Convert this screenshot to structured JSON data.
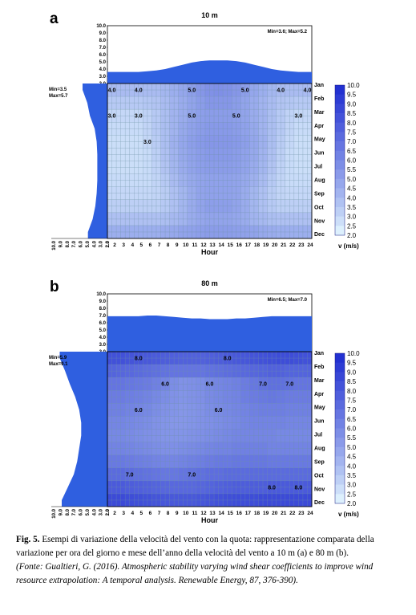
{
  "caption": {
    "label": "Fig. 5.",
    "text": "Esempi di variazione della velocità del vento con la quota: rappresentazione comparata della variazione per ora del giorno e mese dell’anno della velocità del vento a 10 m (a) e 80 m (b).",
    "source": "(Fonte: Gualtieri, G. (2016). Atmospheric stability varying wind shear coefficients to improve wind resource extrapolation: A temporal analysis. Renewable Energy, 87, 376-390)."
  },
  "chart_data": [
    {
      "type": "heatmap",
      "panel": "a",
      "title": "10 m",
      "xlabel": "Hour",
      "x": [
        2,
        3,
        4,
        5,
        6,
        7,
        8,
        9,
        10,
        11,
        12,
        13,
        14,
        15,
        16,
        17,
        18,
        19,
        20,
        21,
        22,
        23,
        24
      ],
      "x_tick_labels": [
        "2.0",
        "2",
        "3",
        "4",
        "5",
        "6",
        "7",
        "8",
        "9",
        "10",
        "11",
        "12",
        "13",
        "14",
        "15",
        "16",
        "17",
        "18",
        "19",
        "20",
        "21",
        "22",
        "23",
        "24"
      ],
      "y_months": [
        "Jan",
        "Feb",
        "Mar",
        "Apr",
        "May",
        "Jun",
        "Jul",
        "Aug",
        "Sep",
        "Oct",
        "Nov",
        "Dec"
      ],
      "top_profile_ticks": [
        "10.0",
        "9.0",
        "8.0",
        "7.0",
        "6.0",
        "5.0",
        "4.0",
        "3.0",
        "2.0"
      ],
      "left_profile_ticks": [
        "10.0",
        "9.0",
        "8.0",
        "7.0",
        "6.0",
        "5.0",
        "4.0",
        "3.0",
        "2.0"
      ],
      "top_stats": "Min=3.6; Max=5.2",
      "left_stats": [
        "Min=3.5",
        "Max=5.7"
      ],
      "contour_labels": [
        "3.0",
        "4.0",
        "5.0"
      ],
      "hourly_profile": [
        3.6,
        3.6,
        3.6,
        3.6,
        3.7,
        3.8,
        4.0,
        4.3,
        4.6,
        4.9,
        5.1,
        5.2,
        5.2,
        5.2,
        5.1,
        4.9,
        4.6,
        4.3,
        4.0,
        3.8,
        3.7,
        3.6,
        3.6
      ],
      "monthly_profile": [
        5.7,
        5.0,
        4.6,
        3.9,
        3.6,
        3.5,
        3.5,
        3.5,
        3.6,
        3.8,
        4.2,
        4.9
      ],
      "values": [
        [
          4.0,
          4.0,
          4.0,
          4.0,
          4.0,
          4.0,
          4.2,
          4.5,
          4.8,
          5.1,
          5.4,
          5.6,
          5.7,
          5.6,
          5.4,
          5.1,
          4.8,
          4.5,
          4.2,
          4.0,
          4.0,
          4.0,
          4.0
        ],
        [
          3.5,
          3.5,
          3.5,
          3.5,
          3.6,
          3.7,
          4.0,
          4.3,
          4.6,
          4.9,
          5.2,
          5.4,
          5.4,
          5.4,
          5.2,
          4.9,
          4.6,
          4.3,
          4.0,
          3.7,
          3.6,
          3.5,
          3.5
        ],
        [
          3.0,
          3.0,
          3.0,
          3.0,
          3.2,
          3.5,
          3.9,
          4.3,
          4.6,
          4.9,
          5.1,
          5.2,
          5.2,
          5.2,
          5.1,
          4.9,
          4.6,
          4.3,
          3.9,
          3.5,
          3.2,
          3.0,
          3.0
        ],
        [
          2.9,
          2.9,
          2.9,
          2.9,
          3.1,
          3.5,
          3.9,
          4.3,
          4.7,
          5.0,
          5.2,
          5.3,
          5.3,
          5.3,
          5.2,
          5.0,
          4.7,
          4.3,
          3.9,
          3.5,
          3.1,
          2.9,
          2.9
        ],
        [
          2.8,
          2.8,
          2.8,
          2.8,
          3.0,
          3.4,
          3.9,
          4.4,
          4.8,
          5.1,
          5.3,
          5.4,
          5.4,
          5.4,
          5.3,
          5.1,
          4.8,
          4.4,
          3.9,
          3.4,
          3.0,
          2.8,
          2.8
        ],
        [
          2.8,
          2.8,
          2.8,
          2.8,
          2.9,
          3.3,
          3.8,
          4.3,
          4.7,
          5.0,
          5.2,
          5.3,
          5.3,
          5.3,
          5.2,
          5.0,
          4.7,
          4.3,
          3.8,
          3.3,
          2.9,
          2.8,
          2.8
        ],
        [
          2.8,
          2.8,
          2.8,
          2.8,
          2.9,
          3.2,
          3.7,
          4.2,
          4.6,
          4.9,
          5.1,
          5.2,
          5.2,
          5.2,
          5.1,
          4.9,
          4.6,
          4.2,
          3.7,
          3.2,
          2.9,
          2.8,
          2.8
        ],
        [
          2.9,
          2.9,
          2.9,
          2.9,
          2.9,
          3.1,
          3.5,
          4.0,
          4.4,
          4.7,
          4.9,
          5.0,
          5.0,
          5.0,
          4.9,
          4.7,
          4.4,
          4.0,
          3.5,
          3.1,
          2.9,
          2.9,
          2.9
        ],
        [
          3.0,
          3.0,
          3.0,
          3.0,
          3.0,
          3.1,
          3.4,
          3.8,
          4.2,
          4.6,
          4.9,
          5.0,
          5.0,
          5.0,
          4.9,
          4.6,
          4.2,
          3.8,
          3.4,
          3.1,
          3.0,
          3.0,
          3.0
        ],
        [
          3.3,
          3.3,
          3.3,
          3.3,
          3.3,
          3.3,
          3.5,
          3.8,
          4.2,
          4.6,
          4.9,
          5.1,
          5.1,
          5.1,
          4.9,
          4.6,
          4.2,
          3.8,
          3.5,
          3.3,
          3.3,
          3.3,
          3.3
        ],
        [
          3.8,
          3.8,
          3.8,
          3.8,
          3.8,
          3.8,
          3.9,
          4.1,
          4.3,
          4.6,
          4.8,
          4.9,
          4.9,
          4.9,
          4.8,
          4.6,
          4.3,
          4.1,
          3.9,
          3.8,
          3.8,
          3.8,
          3.8
        ],
        [
          4.5,
          4.5,
          4.5,
          4.5,
          4.5,
          4.5,
          4.6,
          4.7,
          4.9,
          5.0,
          5.1,
          5.2,
          5.2,
          5.2,
          5.1,
          5.0,
          4.9,
          4.7,
          4.6,
          4.5,
          4.5,
          4.5,
          4.5
        ]
      ],
      "colorbar": {
        "label": "v (m/s)",
        "ticks": [
          "10.0",
          "9.5",
          "9.0",
          "8.5",
          "8.0",
          "7.5",
          "7.0",
          "6.5",
          "6.0",
          "5.5",
          "5.0",
          "4.5",
          "4.0",
          "3.5",
          "3.0",
          "2.5",
          "2.0"
        ],
        "range": [
          2.0,
          10.0
        ]
      }
    },
    {
      "type": "heatmap",
      "panel": "b",
      "title": "80 m",
      "xlabel": "Hour",
      "x": [
        2,
        3,
        4,
        5,
        6,
        7,
        8,
        9,
        10,
        11,
        12,
        13,
        14,
        15,
        16,
        17,
        18,
        19,
        20,
        21,
        22,
        23,
        24
      ],
      "x_tick_labels": [
        "2.0",
        "2",
        "3",
        "4",
        "5",
        "6",
        "7",
        "8",
        "9",
        "10",
        "11",
        "12",
        "13",
        "14",
        "15",
        "16",
        "17",
        "18",
        "19",
        "20",
        "21",
        "22",
        "23",
        "24"
      ],
      "y_months": [
        "Jan",
        "Feb",
        "Mar",
        "Apr",
        "May",
        "Jun",
        "Jul",
        "Aug",
        "Sep",
        "Oct",
        "Nov",
        "Dec"
      ],
      "top_profile_ticks": [
        "10.0",
        "9.0",
        "8.0",
        "7.0",
        "6.0",
        "5.0",
        "4.0",
        "3.0",
        "2.0"
      ],
      "left_profile_ticks": [
        "10.0",
        "9.0",
        "8.0",
        "7.0",
        "6.0",
        "5.0",
        "4.0",
        "3.0",
        "2.0"
      ],
      "top_stats": "Min=6.5; Max=7.0",
      "left_stats": [
        "Min=5.9",
        "Max=9.1"
      ],
      "contour_labels": [
        "6.0",
        "7.0",
        "8.0"
      ],
      "hourly_profile": [
        6.9,
        6.9,
        6.9,
        6.9,
        7.0,
        7.0,
        6.9,
        6.8,
        6.7,
        6.6,
        6.6,
        6.5,
        6.5,
        6.5,
        6.6,
        6.6,
        6.7,
        6.8,
        6.9,
        6.9,
        6.9,
        6.9,
        6.9
      ],
      "monthly_profile": [
        9.1,
        8.3,
        7.6,
        6.8,
        6.2,
        5.9,
        5.9,
        6.2,
        6.5,
        7.0,
        7.9,
        8.8
      ],
      "values": [
        [
          8.3,
          8.3,
          8.2,
          8.1,
          8.0,
          7.9,
          7.8,
          7.7,
          7.6,
          7.6,
          7.6,
          7.7,
          7.8,
          7.9,
          8.0,
          8.1,
          8.2,
          8.3,
          8.4,
          8.5,
          8.5,
          8.4,
          8.3
        ],
        [
          7.5,
          7.4,
          7.3,
          7.2,
          7.1,
          7.0,
          6.9,
          6.8,
          6.8,
          6.8,
          6.8,
          6.9,
          7.0,
          7.1,
          7.2,
          7.3,
          7.4,
          7.5,
          7.6,
          7.6,
          7.5,
          7.5,
          7.5
        ],
        [
          6.8,
          6.8,
          6.7,
          6.6,
          6.5,
          6.3,
          6.1,
          5.8,
          5.6,
          5.7,
          5.8,
          6.0,
          6.1,
          6.2,
          6.3,
          6.5,
          6.7,
          6.9,
          7.0,
          7.0,
          6.9,
          6.8,
          6.8
        ],
        [
          6.5,
          6.5,
          6.4,
          6.3,
          6.2,
          6.0,
          5.8,
          5.6,
          5.5,
          5.6,
          5.7,
          5.9,
          6.0,
          6.1,
          6.2,
          6.4,
          6.5,
          6.6,
          6.7,
          6.6,
          6.5,
          6.5,
          6.5
        ],
        [
          6.3,
          6.3,
          6.2,
          6.1,
          6.0,
          5.8,
          5.6,
          5.5,
          5.4,
          5.5,
          5.6,
          5.8,
          5.9,
          6.0,
          6.1,
          6.2,
          6.3,
          6.4,
          6.4,
          6.4,
          6.3,
          6.3,
          6.3
        ],
        [
          6.1,
          6.1,
          6.0,
          5.9,
          5.8,
          5.6,
          5.5,
          5.4,
          5.4,
          5.5,
          5.6,
          5.7,
          5.8,
          5.9,
          6.0,
          6.1,
          6.2,
          6.2,
          6.2,
          6.2,
          6.1,
          6.1,
          6.1
        ],
        [
          6.0,
          6.0,
          5.9,
          5.8,
          5.7,
          5.6,
          5.5,
          5.5,
          5.5,
          5.6,
          5.7,
          5.8,
          5.9,
          6.0,
          6.1,
          6.1,
          6.1,
          6.1,
          6.1,
          6.0,
          6.0,
          6.0,
          6.0
        ],
        [
          6.2,
          6.2,
          6.1,
          6.0,
          5.9,
          5.8,
          5.7,
          5.7,
          5.8,
          5.9,
          6.0,
          6.1,
          6.2,
          6.2,
          6.3,
          6.3,
          6.3,
          6.3,
          6.2,
          6.2,
          6.2,
          6.2,
          6.2
        ],
        [
          6.6,
          6.6,
          6.5,
          6.4,
          6.3,
          6.2,
          6.1,
          6.1,
          6.2,
          6.3,
          6.4,
          6.5,
          6.6,
          6.6,
          6.7,
          6.7,
          6.7,
          6.7,
          6.6,
          6.6,
          6.6,
          6.6,
          6.6
        ],
        [
          7.2,
          7.2,
          7.1,
          7.0,
          6.9,
          6.8,
          6.7,
          6.7,
          6.8,
          6.9,
          7.0,
          7.1,
          7.1,
          7.2,
          7.2,
          7.2,
          7.2,
          7.2,
          7.2,
          7.2,
          7.2,
          7.2,
          7.2
        ],
        [
          7.9,
          7.9,
          7.8,
          7.7,
          7.6,
          7.5,
          7.4,
          7.3,
          7.3,
          7.3,
          7.4,
          7.5,
          7.6,
          7.7,
          7.8,
          7.8,
          7.8,
          7.8,
          7.9,
          7.9,
          7.9,
          7.9,
          7.9
        ],
        [
          8.6,
          8.6,
          8.5,
          8.4,
          8.3,
          8.2,
          8.1,
          8.0,
          8.0,
          8.0,
          8.1,
          8.2,
          8.3,
          8.4,
          8.5,
          8.5,
          8.5,
          8.6,
          8.6,
          8.6,
          8.6,
          8.6,
          8.6
        ]
      ],
      "colorbar": {
        "label": "v (m/s)",
        "ticks": [
          "10.0",
          "9.5",
          "9.0",
          "8.5",
          "8.0",
          "7.5",
          "7.0",
          "6.5",
          "6.0",
          "5.5",
          "5.0",
          "4.5",
          "4.0",
          "3.5",
          "3.0",
          "2.5",
          "2.0"
        ],
        "range": [
          2.0,
          10.0
        ]
      }
    }
  ],
  "colors": {
    "profile_fill": "#2f5fe0",
    "scale_low": "#e8fbff",
    "scale_high": "#1d2bd0",
    "grid": "#6c90a4",
    "contour": "#000000"
  }
}
